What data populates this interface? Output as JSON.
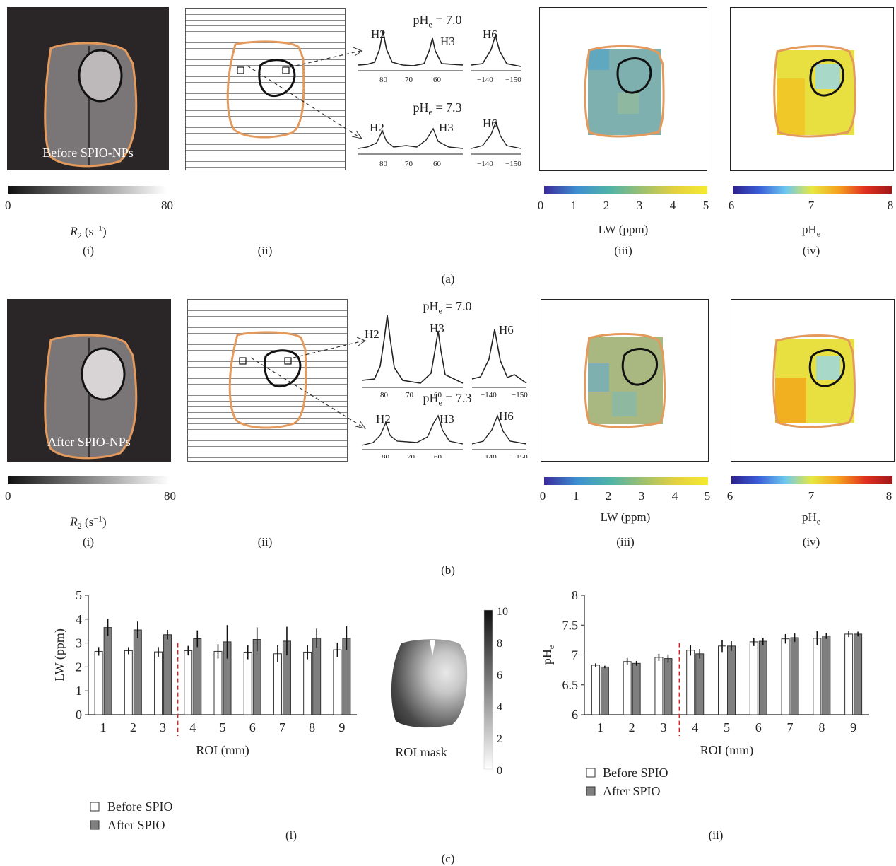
{
  "panel_a": {
    "label": "(a)",
    "mri_caption": "Before SPIO-NPs",
    "r2_min": "0",
    "r2_max": "80",
    "r2_label": "R2 (s−1)",
    "sub_i": "(i)",
    "sub_ii": "(ii)",
    "sub_iii": "(iii)",
    "sub_iv": "(iv)",
    "ph_top": "pHe = 7.0",
    "ph_bottom": "pHe = 7.3",
    "peaks": [
      "H2",
      "H3",
      "H6"
    ],
    "spec_ticks": [
      "80",
      "70",
      "60",
      "−140",
      "−150"
    ],
    "lw_ticks": [
      "0",
      "1",
      "2",
      "3",
      "4",
      "5"
    ],
    "lw_label": "LW (ppm)",
    "ph_ticks": [
      "6",
      "7",
      "8"
    ],
    "ph_label": "pHe"
  },
  "panel_b": {
    "label": "(b)",
    "mri_caption": "After SPIO-NPs",
    "r2_min": "0",
    "r2_max": "80",
    "r2_label": "R2 (s−1)",
    "sub_i": "(i)",
    "sub_ii": "(ii)",
    "sub_iii": "(iii)",
    "sub_iv": "(iv)",
    "ph_top": "pHe = 7.0",
    "ph_bottom": "pHe = 7.3",
    "peaks": [
      "H2",
      "H3",
      "H6"
    ],
    "spec_ticks": [
      "80",
      "70",
      "60",
      "−140",
      "−150"
    ],
    "lw_ticks": [
      "0",
      "1",
      "2",
      "3",
      "4",
      "5"
    ],
    "lw_label": "LW (ppm)",
    "ph_ticks": [
      "6",
      "7",
      "8"
    ],
    "ph_label": "pHe"
  },
  "panel_c": {
    "label": "(c)",
    "sub_i": "(i)",
    "sub_ii": "(ii)",
    "roi_mask_label": "ROI mask",
    "roi_mask_ticks": [
      "10",
      "8",
      "6",
      "4",
      "2",
      "0"
    ],
    "legend": [
      "Before SPIO",
      "After SPIO"
    ]
  },
  "colors": {
    "orange": "#e39a5c",
    "before_bar": "#ffffff",
    "after_bar": "#7f7f7f",
    "divider": "#e02020"
  },
  "chart_data": [
    {
      "type": "bar",
      "xlabel": "ROI (mm)",
      "ylabel": "LW (ppm)",
      "ylim": [
        0,
        5
      ],
      "yticks": [
        "0",
        "1",
        "2",
        "3",
        "4",
        "5"
      ],
      "categories": [
        "1",
        "2",
        "3",
        "4",
        "5",
        "6",
        "7",
        "8",
        "9"
      ],
      "series": [
        {
          "name": "Before SPIO",
          "values": [
            2.65,
            2.68,
            2.63,
            2.68,
            2.65,
            2.62,
            2.55,
            2.62,
            2.72
          ],
          "errors": [
            0.18,
            0.15,
            0.2,
            0.2,
            0.3,
            0.3,
            0.35,
            0.3,
            0.3
          ]
        },
        {
          "name": "After SPIO",
          "values": [
            3.65,
            3.55,
            3.35,
            3.18,
            3.05,
            3.15,
            3.08,
            3.2,
            3.2
          ],
          "errors": [
            0.35,
            0.35,
            0.2,
            0.35,
            0.7,
            0.5,
            0.6,
            0.4,
            0.5
          ]
        }
      ]
    },
    {
      "type": "bar",
      "xlabel": "ROI (mm)",
      "ylabel": "pHe",
      "ylim": [
        6,
        8
      ],
      "yticks": [
        "6",
        "6.5",
        "7",
        "7.5",
        "8"
      ],
      "categories": [
        "1",
        "2",
        "3",
        "4",
        "5",
        "6",
        "7",
        "8",
        "9"
      ],
      "series": [
        {
          "name": "Before SPIO",
          "values": [
            6.83,
            6.89,
            6.96,
            7.08,
            7.15,
            7.22,
            7.27,
            7.28,
            7.35
          ],
          "errors": [
            0.03,
            0.06,
            0.06,
            0.09,
            0.1,
            0.07,
            0.08,
            0.12,
            0.05
          ]
        },
        {
          "name": "After SPIO",
          "values": [
            6.8,
            6.86,
            6.94,
            7.02,
            7.15,
            7.23,
            7.29,
            7.32,
            7.35
          ],
          "errors": [
            0.02,
            0.04,
            0.07,
            0.08,
            0.08,
            0.06,
            0.07,
            0.05,
            0.04
          ]
        }
      ]
    }
  ]
}
